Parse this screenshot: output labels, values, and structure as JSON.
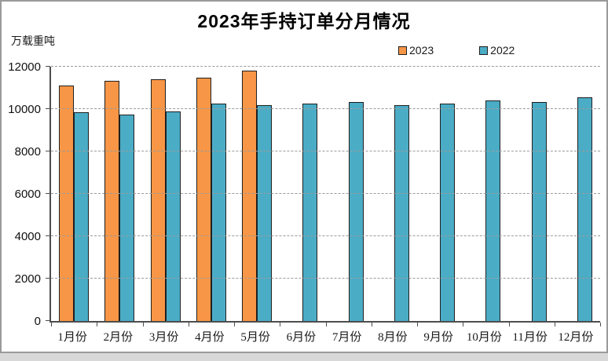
{
  "chart_data": {
    "type": "bar",
    "title": "2023年手持订单分月情况",
    "ylabel": "万载重吨",
    "categories": [
      "1月份",
      "2月份",
      "3月份",
      "4月份",
      "5月份",
      "6月份",
      "7月份",
      "8月份",
      "9月份",
      "10月份",
      "11月份",
      "12月份"
    ],
    "series": [
      {
        "name": "2023",
        "color": "#F79646",
        "values": [
          11100,
          11350,
          11400,
          11500,
          11800,
          null,
          null,
          null,
          null,
          null,
          null,
          null
        ]
      },
      {
        "name": "2022",
        "color": "#4BACC6",
        "values": [
          9850,
          9750,
          9900,
          10250,
          10200,
          10250,
          10350,
          10200,
          10250,
          10400,
          10350,
          10550
        ]
      }
    ],
    "ylim": [
      0,
      12000
    ],
    "ytick_step": 2000,
    "grid": "horizontal-dashed",
    "legend_position": "top-right",
    "bar_border_color": "#1F1F1F",
    "axis_color": "#4D4D4D"
  }
}
